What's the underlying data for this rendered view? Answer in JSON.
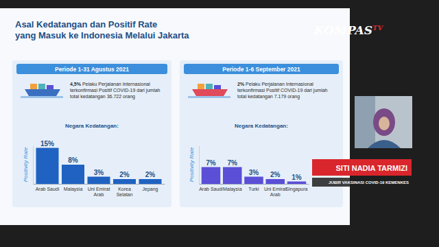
{
  "slide_title": [
    "Asal Kedatangan dan Positif Rate",
    "yang Masuk ke Indonesia Melalui Jakarta"
  ],
  "logo": [
    "KOMPAS",
    "TV"
  ],
  "caption": {
    "name": "SITI NADIA TARMIZI",
    "role": "JUBIR VAKSINASI COVID-19 KEMENKES"
  },
  "chart_data": [
    {
      "type": "bar",
      "title": "Periode 1-31 Agustus 2021",
      "subtitle": "4,5% Pelaku Perjalanan Internasional terkonfirmasi Positif COVID-19 dari jumlah total kedatangan 36.722 orang",
      "x_label": "Negara Kedatangan:",
      "y_label": "Positivity Rate",
      "categories": [
        "Arab Saudi",
        "Malaysia",
        "Uni Emirat Arab",
        "Korea Selatan",
        "Jepang"
      ],
      "values": [
        15,
        8,
        3,
        2,
        2
      ],
      "value_labels": [
        "15%",
        "8%",
        "3%",
        "2%",
        "2%"
      ],
      "color": "#1f62c2",
      "ylim": [
        0,
        16
      ],
      "data_labels": true,
      "tick_labels": "x",
      "grid": false
    },
    {
      "type": "bar",
      "title": "Periode 1-6 September 2021",
      "subtitle": "2% Pelaku Perjalanan Internasional terkonfirmasi Positif COVID-19 dari jumlah total kedatangan 7.179 orang",
      "x_label": "Negara Kedatangan:",
      "y_label": "Positivity Rate",
      "categories": [
        "Arab Saudi",
        "Malaysia",
        "Turki",
        "Uni Emirat Arab",
        "Singapura"
      ],
      "values": [
        7,
        7,
        3,
        2,
        1
      ],
      "value_labels": [
        "7%",
        "7%",
        "3%",
        "2%",
        "1%"
      ],
      "color": "#5a4fd6",
      "ylim": [
        0,
        16
      ],
      "data_labels": true,
      "tick_labels": "x",
      "grid": false
    }
  ]
}
